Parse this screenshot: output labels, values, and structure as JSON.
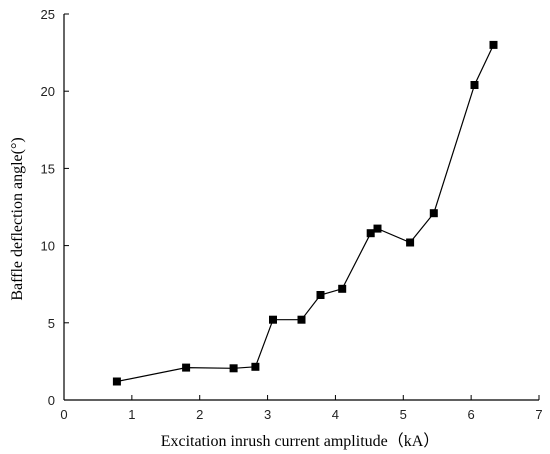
{
  "chart_data": {
    "type": "line",
    "xlabel": "Excitation inrush current amplitude（kA）",
    "ylabel": "Baffle deflection angle(°)",
    "xlim": [
      0,
      7
    ],
    "ylim": [
      0,
      25
    ],
    "xticks": [
      0,
      1,
      2,
      3,
      4,
      5,
      6,
      7
    ],
    "yticks": [
      0,
      5,
      10,
      15,
      20,
      25
    ],
    "grid": false,
    "marker": "square",
    "colors": {
      "line": "#000000",
      "marker": "#000000"
    },
    "series": [
      {
        "x": [
          0.78,
          1.8,
          2.5,
          2.82,
          3.08,
          3.5,
          3.78,
          4.1,
          4.52,
          4.62,
          5.1,
          5.45,
          6.05,
          6.33
        ],
        "y": [
          1.2,
          2.1,
          2.05,
          2.15,
          5.2,
          5.2,
          6.8,
          7.2,
          10.8,
          11.1,
          10.2,
          12.1,
          20.4,
          23.0
        ]
      }
    ]
  }
}
